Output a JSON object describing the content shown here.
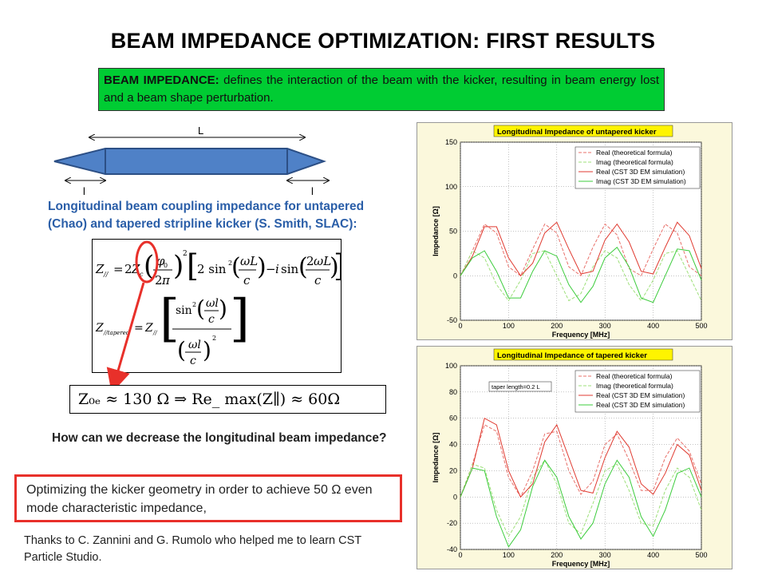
{
  "title": "BEAM IMPEDANCE OPTIMIZATION: FIRST RESULTS",
  "definition": {
    "term": "BEAM IMPEDANCE:",
    "text": " defines the interaction of the beam with the kicker, resulting in beam energy lost and a beam shape perturbation."
  },
  "schematic": {
    "label_L": "L",
    "label_l_left": "l",
    "label_l_right": "l"
  },
  "coupling_text": "Longitudinal beam coupling impedance for untapered (Chao) and tapered stripline kicker (S. Smith, SLAC):",
  "formula_result": "Z₀ₑ ≈ 130 Ω ⇒ Re_ max(Z∥) ≈ 60Ω",
  "question": "How can we decrease the longitudinal  beam impedance?",
  "answer": "Optimizing the kicker geometry in order to achieve 50 Ω even mode characteristic impedance,",
  "thanks": "Thanks to C. Zannini and G. Rumolo who helped me to learn CST Particle Studio.",
  "colors": {
    "green_box": "#00cc33",
    "red_highlight": "#e8302a",
    "blue_text": "#2a5ea8",
    "plot_bg": "#fbf8dc"
  },
  "chart_data": [
    {
      "type": "line",
      "title": "Longitudinal Impedance of untapered kicker",
      "xlabel": "Frequency [MHz]",
      "ylabel": "Impedance [Ω]",
      "xlim": [
        0,
        500
      ],
      "ylim": [
        -50,
        150
      ],
      "xticks": [
        "0",
        "100",
        "200",
        "300",
        "400",
        "500"
      ],
      "yticks": [
        "-50",
        "0",
        "50",
        "100",
        "150"
      ],
      "grid": true,
      "legend": "top-right",
      "annotation": "",
      "series": [
        {
          "name": "Real (theoretical formula)",
          "color": "#e8706a",
          "dash": true,
          "x": [
            0,
            25,
            50,
            75,
            100,
            125,
            150,
            175,
            200,
            225,
            250,
            275,
            300,
            325,
            350,
            375,
            400,
            425,
            450,
            475,
            500
          ],
          "y": [
            0,
            28,
            58,
            48,
            10,
            0,
            30,
            58,
            48,
            10,
            0,
            32,
            58,
            46,
            8,
            0,
            30,
            58,
            48,
            10,
            0
          ]
        },
        {
          "name": "Imag (theoretical formula)",
          "color": "#9ee07a",
          "dash": true,
          "x": [
            0,
            25,
            50,
            75,
            100,
            125,
            150,
            175,
            200,
            225,
            250,
            275,
            300,
            325,
            350,
            375,
            400,
            425,
            450,
            475,
            500
          ],
          "y": [
            0,
            28,
            20,
            -10,
            -28,
            -5,
            25,
            28,
            0,
            -28,
            -20,
            10,
            28,
            20,
            -10,
            -28,
            -5,
            25,
            28,
            0,
            -28
          ]
        },
        {
          "name": "Real (CST 3D EM simulation)",
          "color": "#e03a30",
          "dash": false,
          "x": [
            0,
            25,
            50,
            75,
            100,
            125,
            150,
            175,
            200,
            225,
            250,
            275,
            300,
            325,
            350,
            375,
            400,
            425,
            450,
            475,
            500
          ],
          "y": [
            0,
            22,
            55,
            55,
            20,
            0,
            14,
            48,
            60,
            30,
            2,
            5,
            40,
            58,
            38,
            5,
            2,
            32,
            60,
            45,
            8
          ]
        },
        {
          "name": "Imag (CST 3D EM simulation)",
          "color": "#3ccc3c",
          "dash": false,
          "x": [
            0,
            25,
            50,
            75,
            100,
            125,
            150,
            175,
            200,
            225,
            250,
            275,
            300,
            325,
            350,
            375,
            400,
            425,
            450,
            475,
            500
          ],
          "y": [
            0,
            20,
            28,
            5,
            -25,
            -25,
            5,
            28,
            22,
            -10,
            -30,
            -12,
            20,
            32,
            10,
            -25,
            -30,
            0,
            30,
            28,
            -5
          ]
        }
      ]
    },
    {
      "type": "line",
      "title": "Longitudinal Impedance of tapered kicker",
      "xlabel": "Frequency [MHz]",
      "ylabel": "Impedance [Ω]",
      "xlim": [
        0,
        500
      ],
      "ylim": [
        -40,
        100
      ],
      "xticks": [
        "0",
        "100",
        "200",
        "300",
        "400",
        "500"
      ],
      "yticks": [
        "-40",
        "-20",
        "0",
        "20",
        "40",
        "60",
        "80",
        "100"
      ],
      "grid": true,
      "legend": "top-right",
      "annotation": "taper length=0.2 L",
      "series": [
        {
          "name": "Real (theoretical formula)",
          "color": "#e8706a",
          "dash": true,
          "x": [
            0,
            25,
            50,
            75,
            100,
            125,
            150,
            175,
            200,
            225,
            250,
            275,
            300,
            325,
            350,
            375,
            400,
            425,
            450,
            475,
            500
          ],
          "y": [
            0,
            25,
            55,
            50,
            15,
            0,
            20,
            48,
            50,
            20,
            2,
            12,
            40,
            48,
            28,
            5,
            5,
            30,
            45,
            35,
            10
          ]
        },
        {
          "name": "Imag (theoretical formula)",
          "color": "#9ee07a",
          "dash": true,
          "x": [
            0,
            25,
            50,
            75,
            100,
            125,
            150,
            175,
            200,
            225,
            250,
            275,
            300,
            325,
            350,
            375,
            400,
            425,
            450,
            475,
            500
          ],
          "y": [
            0,
            25,
            22,
            -10,
            -30,
            -15,
            15,
            28,
            10,
            -20,
            -28,
            -5,
            20,
            25,
            5,
            -20,
            -22,
            5,
            22,
            15,
            -10
          ]
        },
        {
          "name": "Real (CST 3D EM simulation)",
          "color": "#e03a30",
          "dash": false,
          "x": [
            0,
            25,
            50,
            75,
            100,
            125,
            150,
            175,
            200,
            225,
            250,
            275,
            300,
            325,
            350,
            375,
            400,
            425,
            450,
            475,
            500
          ],
          "y": [
            0,
            22,
            60,
            55,
            20,
            0,
            10,
            42,
            55,
            30,
            5,
            3,
            30,
            50,
            38,
            10,
            2,
            18,
            40,
            32,
            5
          ]
        },
        {
          "name": "Real (CST 3D EM simulation)",
          "color": "#3ccc3c",
          "dash": false,
          "x": [
            0,
            25,
            50,
            75,
            100,
            125,
            150,
            175,
            200,
            225,
            250,
            275,
            300,
            325,
            350,
            375,
            400,
            425,
            450,
            475,
            500
          ],
          "y": [
            0,
            22,
            20,
            -15,
            -38,
            -25,
            8,
            28,
            15,
            -15,
            -32,
            -20,
            10,
            28,
            15,
            -15,
            -30,
            -10,
            18,
            22,
            0
          ]
        }
      ]
    }
  ]
}
